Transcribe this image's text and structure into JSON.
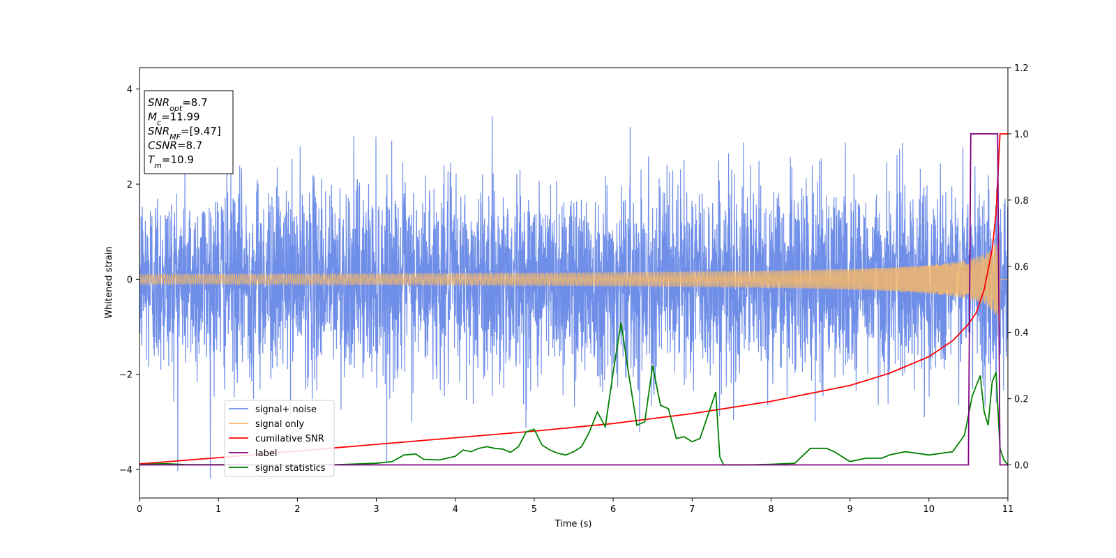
{
  "chart_data": {
    "type": "line",
    "xlabel": "Time (s)",
    "ylabel": "Whitened strain",
    "xlim": [
      0,
      11
    ],
    "ylim": [
      -4.6,
      4.45
    ],
    "y2lim": [
      -0.1,
      1.2
    ],
    "x_ticks": [
      "0",
      "1",
      "2",
      "3",
      "4",
      "5",
      "6",
      "7",
      "8",
      "9",
      "10",
      "11"
    ],
    "y_ticks": [
      "−4",
      "−2",
      "0",
      "2",
      "4"
    ],
    "y2_ticks": [
      "0.0",
      "0.2",
      "0.4",
      "0.6",
      "0.8",
      "1.0",
      "1.2"
    ],
    "grid": false,
    "legend_position": "lower-left",
    "info_box": {
      "snr_opt": {
        "label": "SNR",
        "sub": "opt",
        "value": "=8.7"
      },
      "mc": {
        "label": "M",
        "sub": "c",
        "value": "=11.99"
      },
      "snr_mf": {
        "label": "SNR",
        "sub": "MF",
        "value": "=[9.47]"
      },
      "csnr": {
        "label": "CSNR",
        "value": "=8.7"
      },
      "tm": {
        "label": "T",
        "sub": "m",
        "value": "=10.9"
      }
    },
    "series": [
      {
        "name": "signal+ noise",
        "color": "#6f8ee8",
        "axis": "left",
        "kind": "noise",
        "description_std": 1.0
      },
      {
        "name": "signal only",
        "color": "#f5b76a",
        "axis": "left",
        "kind": "chirp",
        "merger_time": 10.9,
        "peak_amplitude": 0.9
      },
      {
        "name": "cumilative SNR",
        "color": "#ff0000",
        "axis": "right",
        "x": [
          0,
          1,
          2,
          3,
          4,
          5,
          6,
          7,
          8,
          9,
          9.5,
          10,
          10.3,
          10.5,
          10.6,
          10.7,
          10.8,
          10.85,
          10.9,
          11
        ],
        "y": [
          0.003,
          0.022,
          0.042,
          0.062,
          0.082,
          0.102,
          0.125,
          0.155,
          0.192,
          0.24,
          0.277,
          0.327,
          0.375,
          0.425,
          0.46,
          0.53,
          0.65,
          0.76,
          1.0,
          1.0
        ]
      },
      {
        "name": "label",
        "color": "#800080",
        "axis": "right",
        "x": [
          0,
          10.5,
          10.53,
          10.87,
          10.9,
          11
        ],
        "y": [
          0,
          0,
          1,
          1,
          0,
          0
        ]
      },
      {
        "name": "signal statistics",
        "color": "#008000",
        "axis": "right",
        "x": [
          0,
          0.3,
          0.6,
          1,
          1.5,
          2,
          2.5,
          3,
          3.2,
          3.35,
          3.5,
          3.6,
          3.8,
          4,
          4.1,
          4.2,
          4.3,
          4.4,
          4.5,
          4.6,
          4.7,
          4.8,
          4.9,
          5,
          5.1,
          5.2,
          5.3,
          5.4,
          5.5,
          5.6,
          5.7,
          5.8,
          5.9,
          6,
          6.1,
          6.2,
          6.3,
          6.4,
          6.5,
          6.6,
          6.7,
          6.8,
          6.9,
          7,
          7.1,
          7.2,
          7.3,
          7.35,
          7.4,
          7.5,
          7.7,
          8,
          8.3,
          8.5,
          8.6,
          8.7,
          8.8,
          9,
          9.2,
          9.4,
          9.5,
          9.7,
          10,
          10.3,
          10.45,
          10.55,
          10.65,
          10.7,
          10.75,
          10.8,
          10.85,
          10.9,
          10.95,
          11
        ],
        "y": [
          0.001,
          0.004,
          0.001,
          0.001,
          0.0,
          0.0,
          0.001,
          0.005,
          0.01,
          0.03,
          0.033,
          0.017,
          0.015,
          0.026,
          0.045,
          0.04,
          0.05,
          0.055,
          0.05,
          0.048,
          0.038,
          0.055,
          0.1,
          0.108,
          0.06,
          0.045,
          0.035,
          0.03,
          0.04,
          0.055,
          0.1,
          0.16,
          0.115,
          0.28,
          0.43,
          0.27,
          0.12,
          0.13,
          0.3,
          0.18,
          0.17,
          0.08,
          0.085,
          0.07,
          0.08,
          0.15,
          0.22,
          0.025,
          0.0,
          0.0,
          0.0,
          0.002,
          0.005,
          0.05,
          0.05,
          0.05,
          0.04,
          0.01,
          0.02,
          0.02,
          0.03,
          0.04,
          0.03,
          0.04,
          0.09,
          0.21,
          0.27,
          0.16,
          0.12,
          0.25,
          0.28,
          0.05,
          0.015,
          0.0
        ]
      }
    ]
  }
}
